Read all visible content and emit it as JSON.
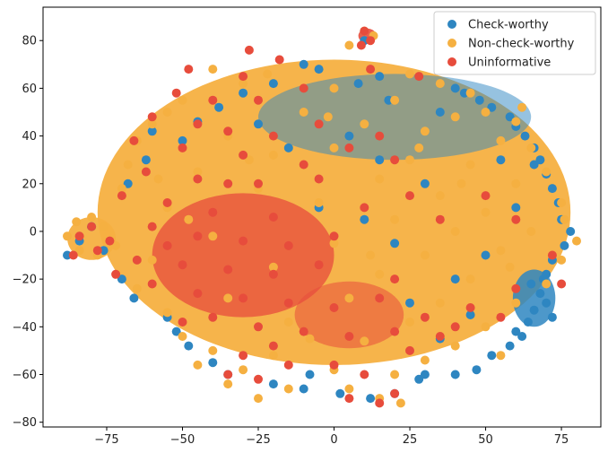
{
  "chart_data": {
    "type": "scatter",
    "title": "",
    "xlabel": "",
    "ylabel": "",
    "xlim": [
      -96,
      88
    ],
    "ylim": [
      -82,
      94
    ],
    "xticks": [
      -75,
      -50,
      -25,
      0,
      25,
      50,
      75
    ],
    "yticks": [
      -80,
      -60,
      -40,
      -20,
      0,
      20,
      40,
      60,
      80
    ],
    "xtick_labels": [
      "−75",
      "−50",
      "−25",
      "0",
      "25",
      "50",
      "75"
    ],
    "ytick_labels": [
      "−80",
      "−60",
      "−40",
      "−20",
      "0",
      "20",
      "40",
      "60",
      "80"
    ],
    "grid": false,
    "legend": "top-right",
    "series": [
      {
        "name": "Check-worthy",
        "color": "#2e86c1",
        "points": [
          [
            -10,
            70
          ],
          [
            -5,
            68
          ],
          [
            15,
            65
          ],
          [
            8,
            62
          ],
          [
            -20,
            62
          ],
          [
            40,
            60
          ],
          [
            43,
            58
          ],
          [
            -30,
            58
          ],
          [
            48,
            55
          ],
          [
            52,
            52
          ],
          [
            58,
            48
          ],
          [
            -45,
            46
          ],
          [
            60,
            44
          ],
          [
            -60,
            42
          ],
          [
            63,
            40
          ],
          [
            66,
            35
          ],
          [
            -62,
            30
          ],
          [
            68,
            30
          ],
          [
            70,
            24
          ],
          [
            -68,
            20
          ],
          [
            72,
            18
          ],
          [
            74,
            12
          ],
          [
            75,
            5
          ],
          [
            -80,
            2
          ],
          [
            78,
            0
          ],
          [
            -84,
            -4
          ],
          [
            76,
            -6
          ],
          [
            -76,
            -8
          ],
          [
            72,
            -12
          ],
          [
            -88,
            -10
          ],
          [
            70,
            -18
          ],
          [
            -70,
            -20
          ],
          [
            65,
            -22
          ],
          [
            -66,
            -28
          ],
          [
            68,
            -26
          ],
          [
            70,
            -30
          ],
          [
            66,
            -33
          ],
          [
            72,
            -36
          ],
          [
            64,
            -38
          ],
          [
            -55,
            -36
          ],
          [
            60,
            -42
          ],
          [
            -52,
            -42
          ],
          [
            58,
            -48
          ],
          [
            -48,
            -48
          ],
          [
            52,
            -52
          ],
          [
            -40,
            -55
          ],
          [
            47,
            -58
          ],
          [
            -35,
            -60
          ],
          [
            40,
            -60
          ],
          [
            28,
            -62
          ],
          [
            -20,
            -64
          ],
          [
            -10,
            -66
          ],
          [
            2,
            -68
          ],
          [
            12,
            -70
          ],
          [
            20,
            -68
          ],
          [
            30,
            -60
          ],
          [
            10,
            5
          ],
          [
            20,
            -5
          ],
          [
            -5,
            10
          ],
          [
            30,
            20
          ],
          [
            15,
            30
          ],
          [
            -15,
            35
          ],
          [
            5,
            40
          ],
          [
            25,
            -30
          ],
          [
            40,
            -20
          ],
          [
            -25,
            45
          ],
          [
            35,
            50
          ],
          [
            55,
            30
          ],
          [
            60,
            10
          ],
          [
            50,
            -10
          ],
          [
            45,
            -35
          ],
          [
            35,
            -45
          ],
          [
            -8,
            -60
          ],
          [
            18,
            55
          ],
          [
            -38,
            52
          ],
          [
            -50,
            38
          ],
          [
            62,
            -44
          ],
          [
            69,
            -20
          ],
          [
            66,
            28
          ],
          [
            10,
            80
          ]
        ]
      },
      {
        "name": "Non-check-worthy",
        "color": "#f5b041",
        "points": [
          [
            10,
            84
          ],
          [
            13,
            82
          ],
          [
            5,
            78
          ],
          [
            -40,
            68
          ],
          [
            -22,
            66
          ],
          [
            25,
            66
          ],
          [
            35,
            62
          ],
          [
            -30,
            62
          ],
          [
            0,
            60
          ],
          [
            45,
            58
          ],
          [
            -50,
            55
          ],
          [
            20,
            55
          ],
          [
            50,
            50
          ],
          [
            -55,
            50
          ],
          [
            -10,
            50
          ],
          [
            40,
            48
          ],
          [
            60,
            46
          ],
          [
            -60,
            45
          ],
          [
            10,
            45
          ],
          [
            30,
            42
          ],
          [
            -35,
            40
          ],
          [
            -65,
            38
          ],
          [
            55,
            38
          ],
          [
            65,
            35
          ],
          [
            0,
            35
          ],
          [
            -20,
            32
          ],
          [
            25,
            30
          ],
          [
            -68,
            28
          ],
          [
            45,
            28
          ],
          [
            70,
            25
          ],
          [
            -45,
            25
          ],
          [
            15,
            22
          ],
          [
            60,
            20
          ],
          [
            -70,
            18
          ],
          [
            -25,
            18
          ],
          [
            35,
            15
          ],
          [
            75,
            12
          ],
          [
            -5,
            12
          ],
          [
            -55,
            10
          ],
          [
            50,
            8
          ],
          [
            76,
            5
          ],
          [
            20,
            5
          ],
          [
            -85,
            4
          ],
          [
            -80,
            6
          ],
          [
            -76,
            2
          ],
          [
            -88,
            -2
          ],
          [
            -84,
            -8
          ],
          [
            -78,
            -10
          ],
          [
            -72,
            -6
          ],
          [
            40,
            0
          ],
          [
            65,
            0
          ],
          [
            80,
            -4
          ],
          [
            -40,
            -2
          ],
          [
            0,
            -5
          ],
          [
            30,
            -10
          ],
          [
            55,
            -8
          ],
          [
            -60,
            -12
          ],
          [
            75,
            -12
          ],
          [
            -20,
            -15
          ],
          [
            15,
            -18
          ],
          [
            45,
            -20
          ],
          [
            70,
            -22
          ],
          [
            -65,
            -24
          ],
          [
            -35,
            -28
          ],
          [
            5,
            -28
          ],
          [
            35,
            -30
          ],
          [
            60,
            -30
          ],
          [
            -55,
            -34
          ],
          [
            -15,
            -38
          ],
          [
            25,
            -38
          ],
          [
            50,
            -40
          ],
          [
            -50,
            -44
          ],
          [
            10,
            -46
          ],
          [
            40,
            -48
          ],
          [
            -40,
            -50
          ],
          [
            -20,
            -52
          ],
          [
            30,
            -54
          ],
          [
            -30,
            -58
          ],
          [
            0,
            -58
          ],
          [
            20,
            -60
          ],
          [
            -35,
            -64
          ],
          [
            -15,
            -66
          ],
          [
            5,
            -66
          ],
          [
            15,
            -70
          ],
          [
            22,
            -72
          ],
          [
            -25,
            -70
          ],
          [
            -45,
            -56
          ],
          [
            55,
            -52
          ],
          [
            -2,
            48
          ],
          [
            28,
            35
          ],
          [
            -48,
            5
          ],
          [
            58,
            -15
          ],
          [
            12,
            -10
          ],
          [
            -8,
            -45
          ],
          [
            42,
            20
          ],
          [
            -28,
            30
          ],
          [
            62,
            52
          ],
          [
            -58,
            22
          ]
        ]
      },
      {
        "name": "Uninformative",
        "color": "#e74c3c",
        "points": [
          [
            10,
            84
          ],
          [
            12,
            80
          ],
          [
            9,
            78
          ],
          [
            -28,
            76
          ],
          [
            -18,
            72
          ],
          [
            -48,
            68
          ],
          [
            -30,
            65
          ],
          [
            -52,
            58
          ],
          [
            -25,
            55
          ],
          [
            -60,
            48
          ],
          [
            -45,
            45
          ],
          [
            -35,
            42
          ],
          [
            -20,
            40
          ],
          [
            -66,
            38
          ],
          [
            -50,
            35
          ],
          [
            -30,
            32
          ],
          [
            -62,
            25
          ],
          [
            -45,
            22
          ],
          [
            -25,
            20
          ],
          [
            -5,
            22
          ],
          [
            -70,
            15
          ],
          [
            -55,
            12
          ],
          [
            -40,
            8
          ],
          [
            -20,
            6
          ],
          [
            -80,
            2
          ],
          [
            -84,
            -2
          ],
          [
            -86,
            -10
          ],
          [
            -78,
            -8
          ],
          [
            -74,
            -4
          ],
          [
            -60,
            2
          ],
          [
            -45,
            -2
          ],
          [
            -30,
            -4
          ],
          [
            -15,
            -6
          ],
          [
            0,
            -2
          ],
          [
            -65,
            -12
          ],
          [
            -50,
            -14
          ],
          [
            -35,
            -16
          ],
          [
            -20,
            -18
          ],
          [
            -5,
            -14
          ],
          [
            -60,
            -22
          ],
          [
            -45,
            -26
          ],
          [
            -30,
            -28
          ],
          [
            -15,
            -30
          ],
          [
            0,
            -32
          ],
          [
            15,
            -28
          ],
          [
            -40,
            -36
          ],
          [
            -25,
            -40
          ],
          [
            -10,
            -42
          ],
          [
            5,
            -44
          ],
          [
            20,
            -42
          ],
          [
            30,
            -36
          ],
          [
            45,
            -32
          ],
          [
            35,
            -44
          ],
          [
            25,
            -50
          ],
          [
            -30,
            -52
          ],
          [
            -15,
            -56
          ],
          [
            0,
            -56
          ],
          [
            10,
            -60
          ],
          [
            -25,
            -62
          ],
          [
            -35,
            -60
          ],
          [
            5,
            -70
          ],
          [
            15,
            -72
          ],
          [
            20,
            -68
          ],
          [
            -20,
            -48
          ],
          [
            -50,
            -38
          ],
          [
            60,
            -24
          ],
          [
            75,
            -22
          ],
          [
            72,
            -10
          ],
          [
            55,
            -36
          ],
          [
            40,
            -40
          ],
          [
            20,
            -20
          ],
          [
            10,
            10
          ],
          [
            25,
            15
          ],
          [
            35,
            5
          ],
          [
            20,
            30
          ],
          [
            15,
            40
          ],
          [
            -5,
            45
          ],
          [
            5,
            35
          ],
          [
            60,
            5
          ],
          [
            50,
            15
          ],
          [
            12,
            68
          ],
          [
            28,
            65
          ],
          [
            -35,
            20
          ],
          [
            -10,
            28
          ],
          [
            -55,
            -6
          ],
          [
            -72,
            -18
          ],
          [
            -10,
            60
          ],
          [
            -40,
            55
          ]
        ]
      }
    ]
  }
}
